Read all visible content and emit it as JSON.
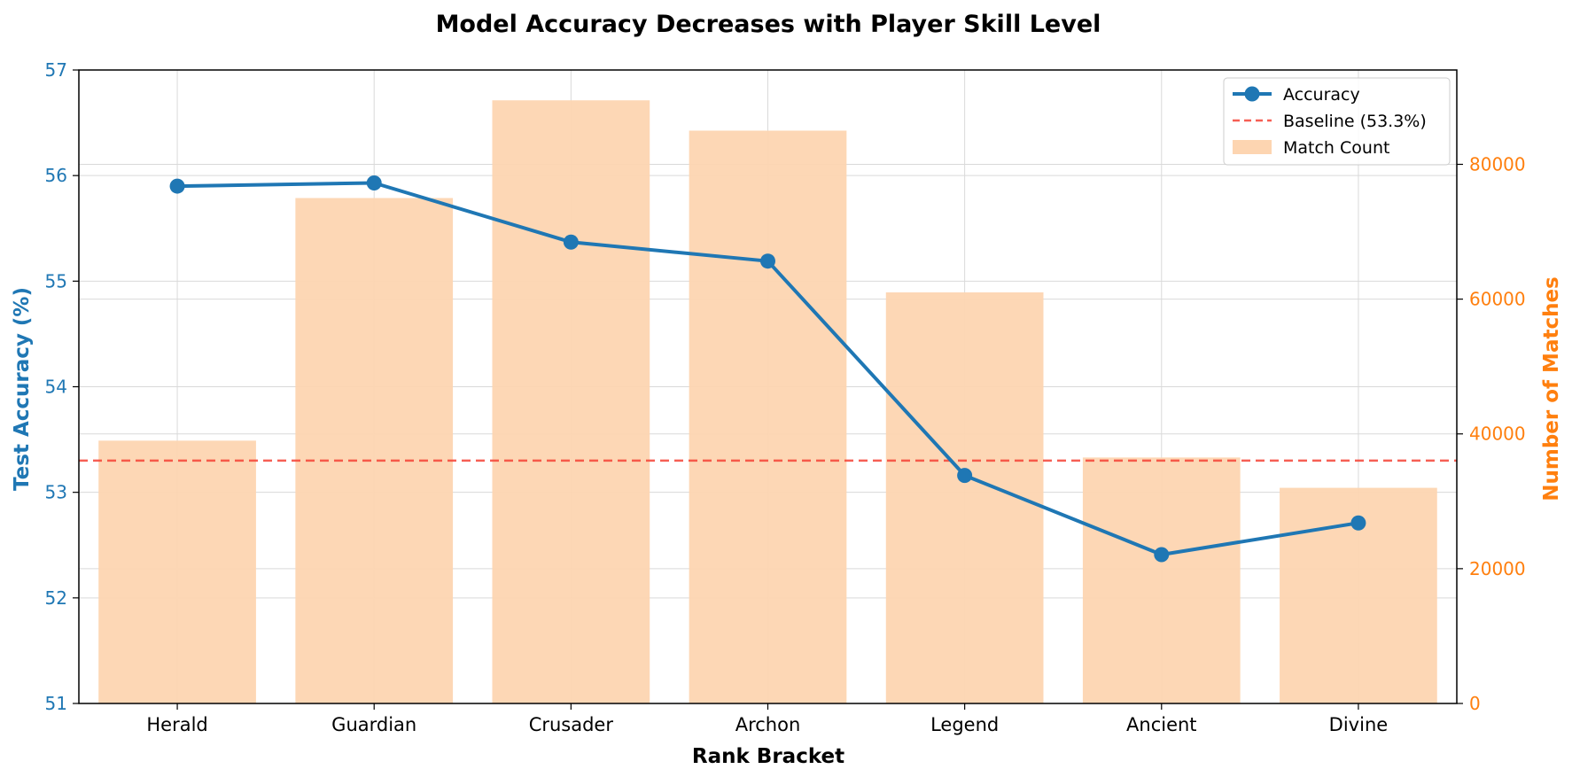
{
  "chart_data": {
    "type": "bar",
    "title": "Model Accuracy Decreases with Player Skill Level",
    "xlabel": "Rank Bracket",
    "ylabel_left": "Test Accuracy (%)",
    "ylabel_right": "Number of Matches",
    "categories": [
      "Herald",
      "Guardian",
      "Crusader",
      "Archon",
      "Legend",
      "Ancient",
      "Divine"
    ],
    "series": [
      {
        "name": "Accuracy",
        "kind": "line",
        "axis": "left",
        "color": "#1f77b4",
        "values": [
          55.9,
          55.93,
          55.37,
          55.19,
          53.16,
          52.41,
          52.71
        ]
      },
      {
        "name": "Match Count",
        "kind": "bar",
        "axis": "right",
        "color": "#fdd5b1",
        "values": [
          39000,
          75000,
          89500,
          85000,
          61000,
          36500,
          32000
        ]
      }
    ],
    "baseline": {
      "label": "Baseline (53.3%)",
      "value": 53.3,
      "color": "#f44336"
    },
    "ylim_left": [
      51,
      57
    ],
    "yticks_left": [
      "51",
      "52",
      "53",
      "54",
      "55",
      "56",
      "57"
    ],
    "ylim_right": [
      0,
      94000
    ],
    "yticks_right": [
      "0",
      "20000",
      "40000",
      "60000",
      "80000"
    ],
    "grid": true,
    "legend_position": "top-right"
  }
}
